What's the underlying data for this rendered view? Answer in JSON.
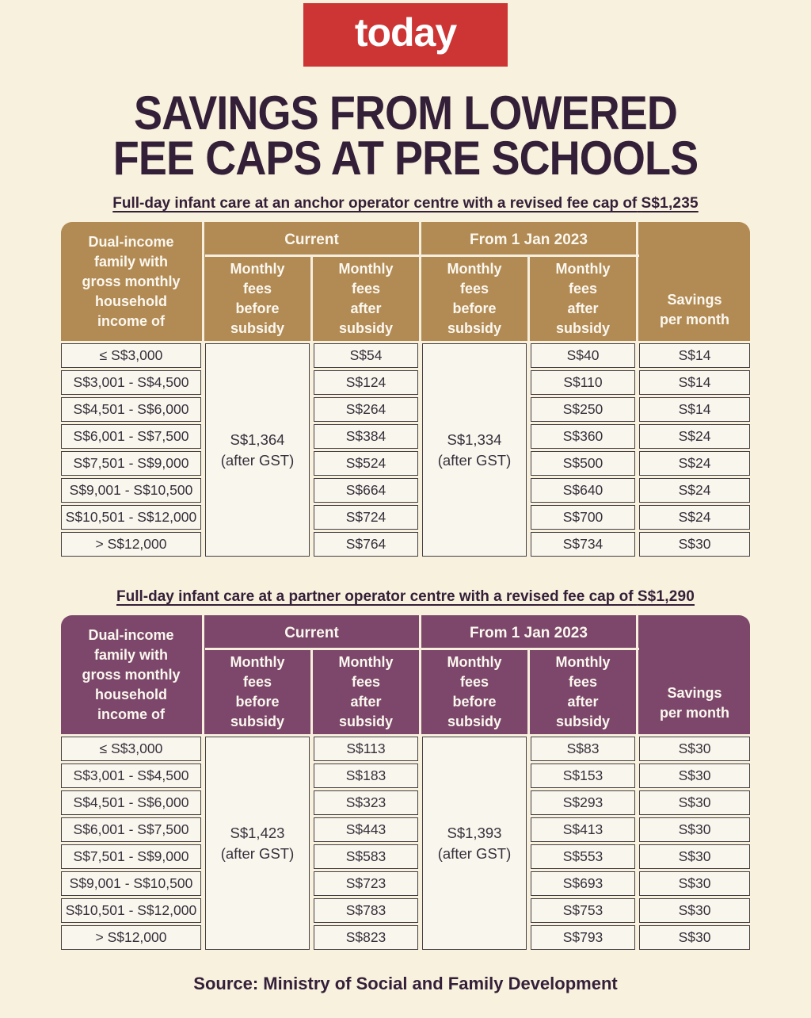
{
  "page": {
    "logo_text": "today",
    "title": "SAVINGS FROM LOWERED\nFEE CAPS AT PRE SCHOOLS",
    "source": "Source: Ministry of Social and Family Development"
  },
  "colors": {
    "background": "#f8f1de",
    "logo_red": "#cc3534",
    "heading_text": "#341f38",
    "anchor_header_bg": "#b28a54",
    "partner_header_bg": "#7c476a",
    "header_text": "#fbf8ef",
    "cell_bg": "#f9f6ee",
    "cell_border": "#443e42"
  },
  "chart_data": [
    {
      "type": "table",
      "subtitle_text": "Full-day infant care at an anchor operator centre with a revised fee cap of",
      "subtitle_amount": "S$1,235",
      "headers": {
        "income": "Dual-income\nfamily with\ngross monthly\nhousehold\nincome of",
        "current": "Current",
        "from": "From 1 Jan 2023",
        "before": "Monthly\nfees\nbefore\nsubsidy",
        "after": "Monthly\nfees\nafter\nsubsidy",
        "savings": "Savings\nper month"
      },
      "merged": {
        "current_before": "S$1,364\n(after GST)",
        "from_before": "S$1,334\n(after GST)"
      },
      "rows": [
        {
          "income": "≤ S$3,000",
          "current_after": "S$54",
          "from_after": "S$40",
          "savings": "S$14"
        },
        {
          "income": "S$3,001 - S$4,500",
          "current_after": "S$124",
          "from_after": "S$110",
          "savings": "S$14"
        },
        {
          "income": "S$4,501 - S$6,000",
          "current_after": "S$264",
          "from_after": "S$250",
          "savings": "S$14"
        },
        {
          "income": "S$6,001 - S$7,500",
          "current_after": "S$384",
          "from_after": "S$360",
          "savings": "S$24"
        },
        {
          "income": "S$7,501 - S$9,000",
          "current_after": "S$524",
          "from_after": "S$500",
          "savings": "S$24"
        },
        {
          "income": "S$9,001 - S$10,500",
          "current_after": "S$664",
          "from_after": "S$640",
          "savings": "S$24"
        },
        {
          "income": "S$10,501 - S$12,000",
          "current_after": "S$724",
          "from_after": "S$700",
          "savings": "S$24"
        },
        {
          "income": "> S$12,000",
          "current_after": "S$764",
          "from_after": "S$734",
          "savings": "S$30"
        }
      ]
    },
    {
      "type": "table",
      "subtitle_text": "Full-day infant care at a partner operator centre with a revised fee cap of",
      "subtitle_amount": "S$1,290",
      "headers": {
        "income": "Dual-income\nfamily with\ngross monthly\nhousehold\nincome of",
        "current": "Current",
        "from": "From 1 Jan 2023",
        "before": "Monthly\nfees\nbefore\nsubsidy",
        "after": "Monthly\nfees\nafter\nsubsidy",
        "savings": "Savings\nper month"
      },
      "merged": {
        "current_before": "S$1,423\n(after GST)",
        "from_before": "S$1,393\n(after GST)"
      },
      "rows": [
        {
          "income": "≤ S$3,000",
          "current_after": "S$113",
          "from_after": "S$83",
          "savings": "S$30"
        },
        {
          "income": "S$3,001 - S$4,500",
          "current_after": "S$183",
          "from_after": "S$153",
          "savings": "S$30"
        },
        {
          "income": "S$4,501 - S$6,000",
          "current_after": "S$323",
          "from_after": "S$293",
          "savings": "S$30"
        },
        {
          "income": "S$6,001 - S$7,500",
          "current_after": "S$443",
          "from_after": "S$413",
          "savings": "S$30"
        },
        {
          "income": "S$7,501 - S$9,000",
          "current_after": "S$583",
          "from_after": "S$553",
          "savings": "S$30"
        },
        {
          "income": "S$9,001 - S$10,500",
          "current_after": "S$723",
          "from_after": "S$693",
          "savings": "S$30"
        },
        {
          "income": "S$10,501 - S$12,000",
          "current_after": "S$783",
          "from_after": "S$753",
          "savings": "S$30"
        },
        {
          "income": "> S$12,000",
          "current_after": "S$823",
          "from_after": "S$793",
          "savings": "S$30"
        }
      ]
    }
  ]
}
